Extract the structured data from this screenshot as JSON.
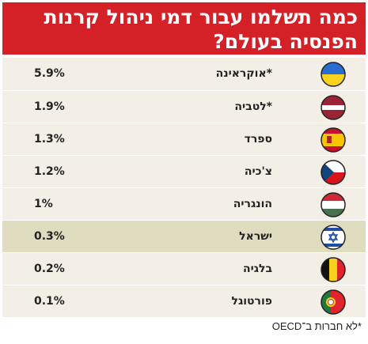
{
  "title_lines": [
    "כמה תשלמו עבור דמי ניהול קרנות",
    "הפנסיה בעולם?"
  ],
  "footnote": "*לא חברות ב־OECD",
  "colors": {
    "header": "#d42027",
    "row_background": "#f4efe6",
    "highlight_background": "#e0dcc0"
  },
  "highlight_index": 5,
  "chart_data": {
    "type": "table",
    "columns": [
      "flag",
      "country",
      "value"
    ],
    "rows": [
      {
        "country": "*אוקראינה",
        "value_label": "5.9%",
        "value": 5.9,
        "flag": "ukraine-flag-icon"
      },
      {
        "country": "*לטביה",
        "value_label": "1.9%",
        "value": 1.9,
        "flag": "latvia-flag-icon"
      },
      {
        "country": "ספרד",
        "value_label": "1.3%",
        "value": 1.3,
        "flag": "spain-flag-icon"
      },
      {
        "country": "צ'כיה",
        "value_label": "1.2%",
        "value": 1.2,
        "flag": "czech-flag-icon"
      },
      {
        "country": "הונגריה",
        "value_label": "1%",
        "value": 1,
        "flag": "hungary-flag-icon"
      },
      {
        "country": "ישראל",
        "value_label": "0.3%",
        "value": 0.3,
        "flag": "israel-flag-icon"
      },
      {
        "country": "בלגיה",
        "value_label": "0.2%",
        "value": 0.2,
        "flag": "belgium-flag-icon"
      },
      {
        "country": "פורטוגל",
        "value_label": "0.1%",
        "value": 0.1,
        "flag": "portugal-flag-icon"
      }
    ]
  }
}
